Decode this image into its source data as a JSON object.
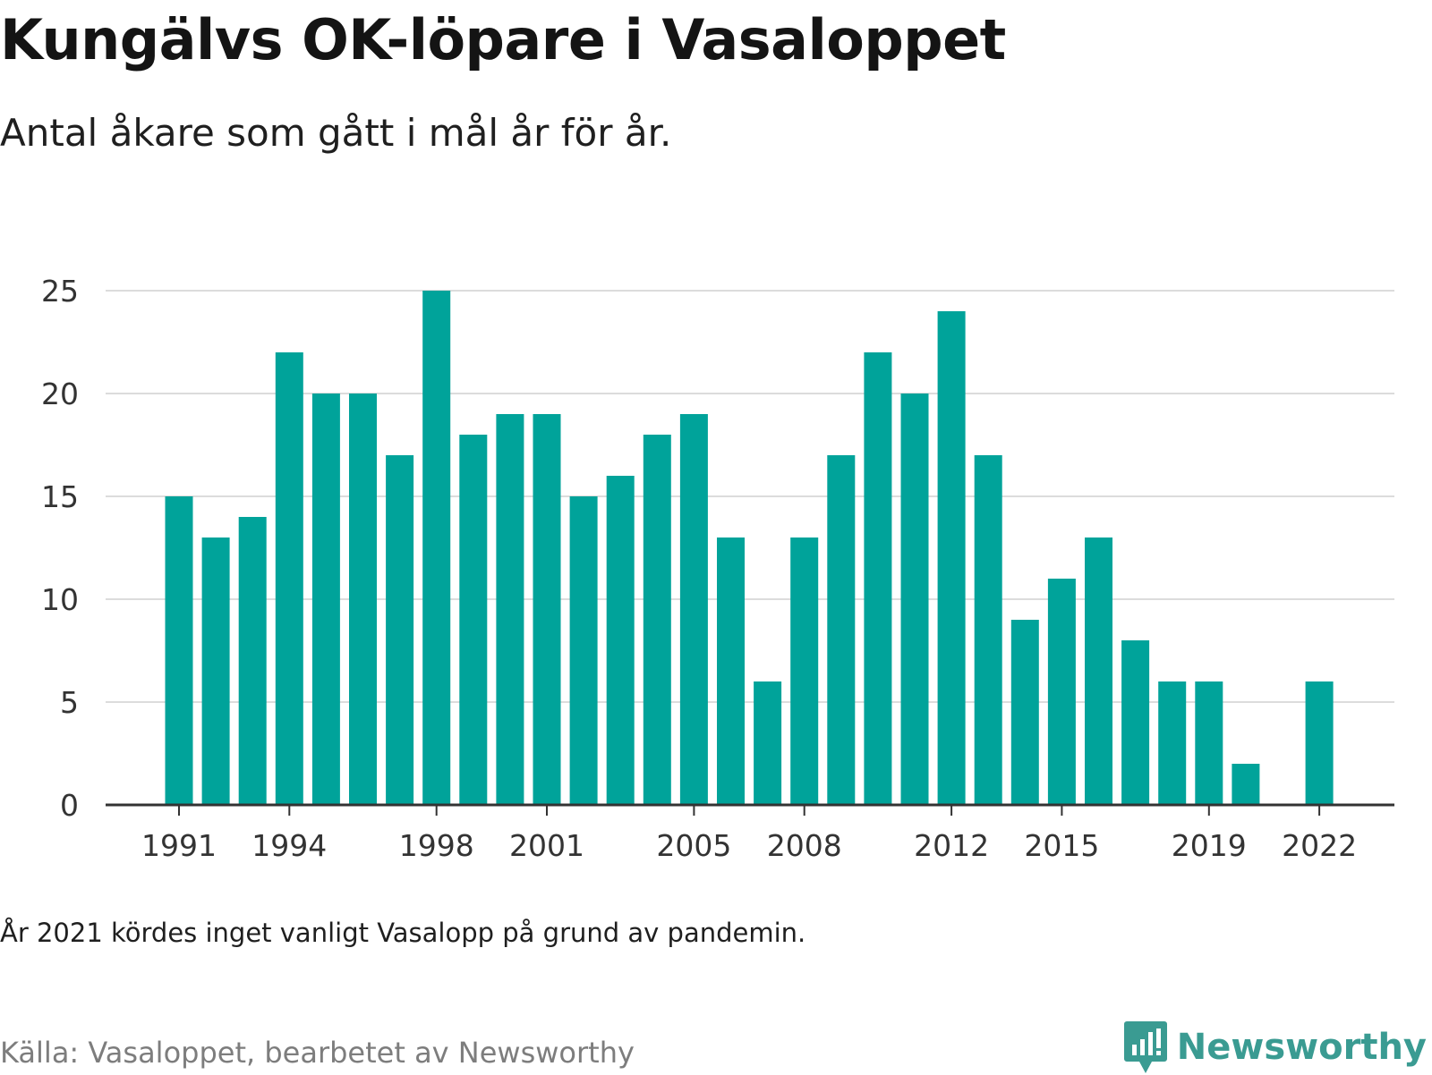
{
  "title": "Kungälvs OK-löpare i Vasaloppet",
  "subtitle": "Antal åkare som gått i mål år för år.",
  "note": "År 2021 kördes inget vanligt Vasalopp på grund av pandemin.",
  "source": "Källa: Vasaloppet, bearbetet av Newsworthy",
  "logo": {
    "text": "Newsworthy",
    "icon": "bar-chart-bubble-icon",
    "color": "#3a9b92"
  },
  "chart_data": {
    "type": "bar",
    "bar_color": "#00a39a",
    "ylim": [
      0,
      25
    ],
    "yticks": [
      0,
      5,
      10,
      15,
      20,
      25
    ],
    "xticks": [
      1991,
      1994,
      1998,
      2001,
      2005,
      2008,
      2012,
      2015,
      2019,
      2022
    ],
    "grid": true,
    "categories": [
      1991,
      1992,
      1993,
      1994,
      1995,
      1996,
      1997,
      1998,
      1999,
      2000,
      2001,
      2002,
      2003,
      2004,
      2005,
      2006,
      2007,
      2008,
      2009,
      2010,
      2011,
      2012,
      2013,
      2014,
      2015,
      2016,
      2017,
      2018,
      2019,
      2020,
      2021,
      2022
    ],
    "values": [
      15,
      13,
      14,
      22,
      20,
      20,
      17,
      25,
      18,
      19,
      19,
      15,
      16,
      18,
      19,
      13,
      6,
      13,
      17,
      22,
      20,
      24,
      17,
      9,
      11,
      13,
      8,
      6,
      6,
      2,
      null,
      6
    ]
  }
}
